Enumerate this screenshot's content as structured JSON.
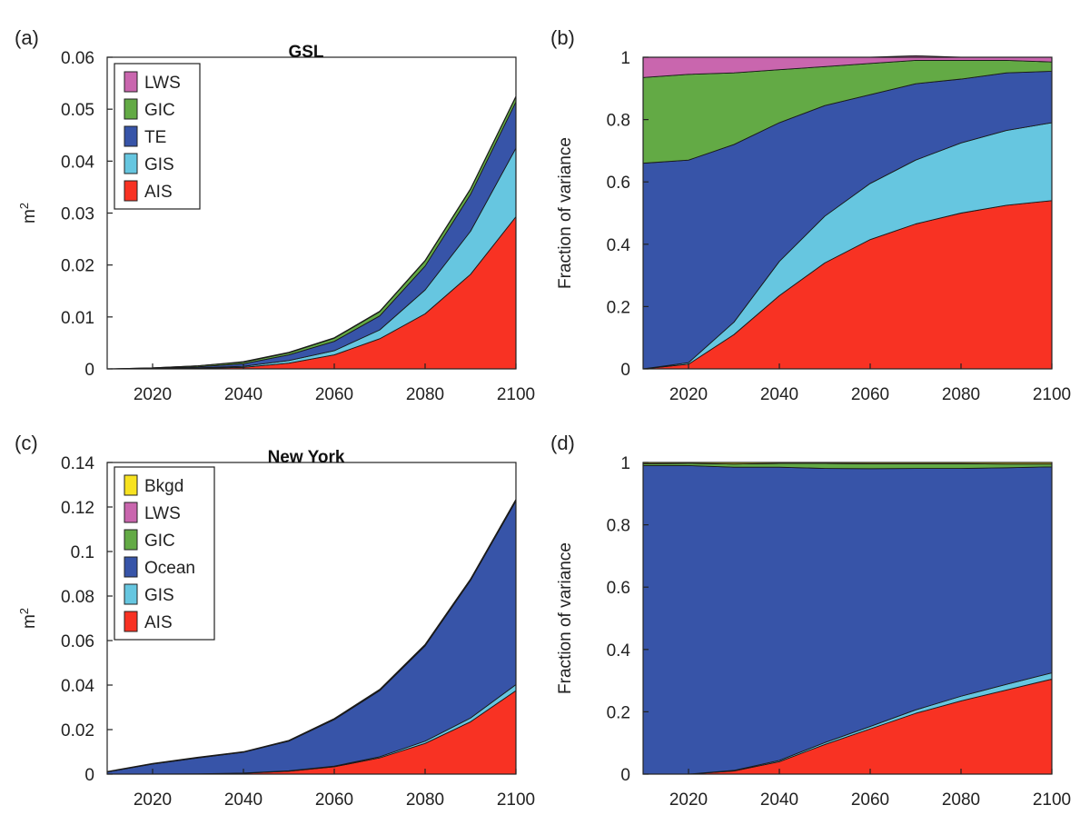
{
  "chart_data": [
    {
      "panel": "(a)",
      "title": "GSL",
      "type": "area",
      "stacked": true,
      "ylabel": "m",
      "ylabel_superscript": "2",
      "xlim": [
        2010,
        2100
      ],
      "ylim": [
        0,
        0.06
      ],
      "xticks": [
        2020,
        2040,
        2060,
        2080,
        2100
      ],
      "yticks": [
        0,
        0.01,
        0.02,
        0.03,
        0.04,
        0.05,
        0.06
      ],
      "ytick_labels": [
        "0",
        "0.01",
        "0.02",
        "0.03",
        "0.04",
        "0.05",
        "0.06"
      ],
      "legend": "top-left",
      "legend_order": [
        "LWS",
        "GIC",
        "TE",
        "GIS",
        "AIS"
      ],
      "x": [
        2010,
        2020,
        2030,
        2040,
        2050,
        2060,
        2070,
        2080,
        2090,
        2100
      ],
      "series": [
        {
          "name": "AIS",
          "color": "#f83223",
          "values": [
            0,
            0,
            0.0001,
            0.0003,
            0.0011,
            0.0027,
            0.0058,
            0.0106,
            0.0182,
            0.0293
          ]
        },
        {
          "name": "GIS",
          "color": "#66c6e0",
          "values": [
            0,
            0,
            0.0001,
            0.0002,
            0.0005,
            0.0008,
            0.0017,
            0.0046,
            0.0083,
            0.0132
          ]
        },
        {
          "name": "TE",
          "color": "#3754a8",
          "values": [
            0,
            0.0001,
            0.0002,
            0.0005,
            0.0011,
            0.0018,
            0.0027,
            0.0046,
            0.0071,
            0.0089
          ]
        },
        {
          "name": "GIC",
          "color": "#63aa45",
          "values": [
            0,
            0.0001,
            0.0002,
            0.0003,
            0.0004,
            0.0006,
            0.0008,
            0.001,
            0.001,
            0.001
          ]
        },
        {
          "name": "LWS",
          "color": "#c966ae",
          "values": [
            0,
            0,
            0,
            0.0001,
            0.0001,
            0.0001,
            0.0001,
            0.0001,
            0.0001,
            0.0001
          ]
        }
      ]
    },
    {
      "panel": "(b)",
      "title": "",
      "type": "area",
      "stacked": true,
      "ylabel": "Fraction of variance",
      "xlim": [
        2010,
        2100
      ],
      "ylim": [
        0,
        1
      ],
      "xticks": [
        2020,
        2040,
        2060,
        2080,
        2100
      ],
      "yticks": [
        0,
        0.2,
        0.4,
        0.6,
        0.8,
        1
      ],
      "ytick_labels": [
        "0",
        "0.2",
        "0.4",
        "0.6",
        "0.8",
        "1"
      ],
      "x": [
        2010,
        2020,
        2030,
        2040,
        2050,
        2060,
        2070,
        2080,
        2090,
        2100
      ],
      "series": [
        {
          "name": "AIS",
          "color": "#f83223",
          "values": [
            0,
            0.015,
            0.11,
            0.235,
            0.34,
            0.415,
            0.465,
            0.5,
            0.525,
            0.54
          ]
        },
        {
          "name": "GIS",
          "color": "#66c6e0",
          "values": [
            0,
            0.005,
            0.04,
            0.11,
            0.15,
            0.18,
            0.205,
            0.225,
            0.24,
            0.25
          ]
        },
        {
          "name": "TE",
          "color": "#3754a8",
          "values": [
            0.66,
            0.65,
            0.57,
            0.445,
            0.355,
            0.285,
            0.245,
            0.205,
            0.185,
            0.165
          ]
        },
        {
          "name": "GIC",
          "color": "#63aa45",
          "values": [
            0.275,
            0.275,
            0.23,
            0.17,
            0.125,
            0.1,
            0.075,
            0.06,
            0.04,
            0.03
          ]
        },
        {
          "name": "LWS",
          "color": "#c966ae",
          "values": [
            0.065,
            0.055,
            0.05,
            0.04,
            0.03,
            0.02,
            0.015,
            0.01,
            0.01,
            0.015
          ]
        }
      ]
    },
    {
      "panel": "(c)",
      "title": "New York",
      "type": "area",
      "stacked": true,
      "ylabel": "m",
      "ylabel_superscript": "2",
      "xlim": [
        2010,
        2100
      ],
      "ylim": [
        0,
        0.14
      ],
      "xticks": [
        2020,
        2040,
        2060,
        2080,
        2100
      ],
      "yticks": [
        0,
        0.02,
        0.04,
        0.06,
        0.08,
        0.1,
        0.12,
        0.14
      ],
      "ytick_labels": [
        "0",
        "0.02",
        "0.04",
        "0.06",
        "0.08",
        "0.1",
        "0.12",
        "0.14"
      ],
      "legend": "top-left",
      "legend_order": [
        "Bkgd",
        "LWS",
        "GIC",
        "Ocean",
        "GIS",
        "AIS"
      ],
      "x": [
        2010,
        2020,
        2030,
        2040,
        2050,
        2060,
        2070,
        2080,
        2090,
        2100
      ],
      "series": [
        {
          "name": "AIS",
          "color": "#f83223",
          "values": [
            0,
            0,
            0.0001,
            0.0004,
            0.0013,
            0.0033,
            0.0073,
            0.0138,
            0.0235,
            0.0375
          ]
        },
        {
          "name": "GIS",
          "color": "#66c6e0",
          "values": [
            0,
            0,
            0,
            0.0001,
            0.0002,
            0.0003,
            0.0005,
            0.001,
            0.0017,
            0.0027
          ]
        },
        {
          "name": "Ocean",
          "color": "#3754a8",
          "values": [
            0.001,
            0.0045,
            0.0072,
            0.0093,
            0.0133,
            0.0209,
            0.0297,
            0.0428,
            0.0618,
            0.0825
          ]
        },
        {
          "name": "GIC",
          "color": "#63aa45",
          "values": [
            0,
            0.0001,
            0.0001,
            0.0001,
            0.0002,
            0.0003,
            0.0004,
            0.0005,
            0.0005,
            0.0006
          ]
        },
        {
          "name": "LWS",
          "color": "#c966ae",
          "values": [
            0,
            0,
            0,
            0,
            0,
            0,
            0,
            0,
            0,
            0
          ]
        },
        {
          "name": "Bkgd",
          "color": "#f7e220",
          "values": [
            0.0002,
            0.0002,
            0.0002,
            0.0002,
            0.0002,
            0.0002,
            0.0002,
            0.0002,
            0.0002,
            0.0002
          ]
        }
      ]
    },
    {
      "panel": "(d)",
      "title": "",
      "type": "area",
      "stacked": true,
      "ylabel": "Fraction of variance",
      "xlim": [
        2010,
        2100
      ],
      "ylim": [
        0,
        1
      ],
      "xticks": [
        2020,
        2040,
        2060,
        2080,
        2100
      ],
      "yticks": [
        0,
        0.2,
        0.4,
        0.6,
        0.8,
        1
      ],
      "ytick_labels": [
        "0",
        "0.2",
        "0.4",
        "0.6",
        "0.8",
        "1"
      ],
      "x": [
        2010,
        2020,
        2030,
        2040,
        2050,
        2060,
        2070,
        2080,
        2090,
        2100
      ],
      "series": [
        {
          "name": "AIS",
          "color": "#f83223",
          "values": [
            0,
            0,
            0.01,
            0.04,
            0.095,
            0.145,
            0.195,
            0.235,
            0.27,
            0.305
          ]
        },
        {
          "name": "GIS",
          "color": "#66c6e0",
          "values": [
            0,
            0,
            0.002,
            0.004,
            0.006,
            0.008,
            0.011,
            0.015,
            0.018,
            0.02
          ]
        },
        {
          "name": "Ocean",
          "color": "#3754a8",
          "values": [
            0.99,
            0.99,
            0.973,
            0.941,
            0.88,
            0.827,
            0.775,
            0.731,
            0.695,
            0.661
          ]
        },
        {
          "name": "GIC",
          "color": "#63aa45",
          "values": [
            0.006,
            0.007,
            0.01,
            0.012,
            0.016,
            0.016,
            0.015,
            0.015,
            0.012,
            0.009
          ]
        },
        {
          "name": "LWS",
          "color": "#c966ae",
          "values": [
            0,
            0,
            0,
            0,
            0,
            0,
            0,
            0,
            0,
            0
          ]
        },
        {
          "name": "Bkgd",
          "color": "#f7e220",
          "values": [
            0.004,
            0.003,
            0.005,
            0.003,
            0.003,
            0.004,
            0.004,
            0.004,
            0.005,
            0.005
          ]
        }
      ]
    }
  ]
}
